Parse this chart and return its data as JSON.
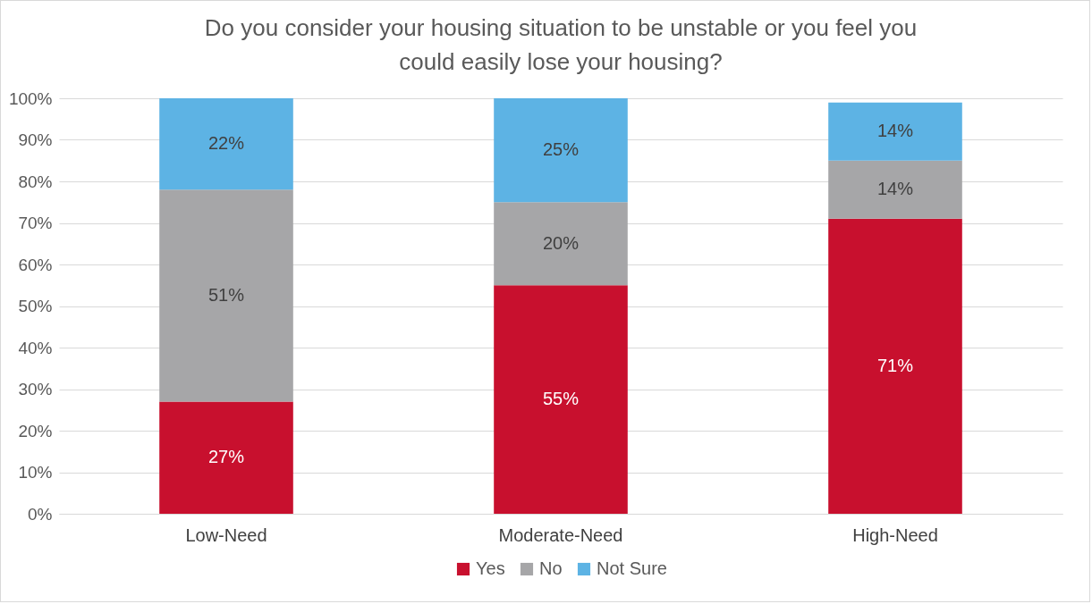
{
  "chart_data": {
    "type": "bar",
    "title": "Do you consider your housing situation to be unstable or you feel you could easily lose your housing?",
    "categories": [
      "Low-Need",
      "Moderate-Need",
      "High-Need"
    ],
    "stacked": true,
    "series": [
      {
        "name": "Yes",
        "color": "#c8102e",
        "values": [
          27,
          55,
          71
        ]
      },
      {
        "name": "No",
        "color": "#a6a6a8",
        "values": [
          51,
          20,
          14
        ]
      },
      {
        "name": "Not Sure",
        "color": "#5db3e4",
        "values": [
          22,
          25,
          14
        ]
      }
    ],
    "ylim": [
      0,
      100
    ],
    "yticks": [
      {
        "value": 0,
        "label": "0%"
      },
      {
        "value": 10,
        "label": "10%"
      },
      {
        "value": 20,
        "label": "20%"
      },
      {
        "value": 30,
        "label": "30%"
      },
      {
        "value": 40,
        "label": "40%"
      },
      {
        "value": 50,
        "label": "50%"
      },
      {
        "value": 60,
        "label": "60%"
      },
      {
        "value": 70,
        "label": "70%"
      },
      {
        "value": 80,
        "label": "80%"
      },
      {
        "value": 90,
        "label": "90%"
      },
      {
        "value": 100,
        "label": "100%"
      }
    ],
    "value_labels": [
      [
        "27%",
        "55%",
        "71%"
      ],
      [
        "51%",
        "20%",
        "14%"
      ],
      [
        "22%",
        "25%",
        "14%"
      ]
    ],
    "grid": "y",
    "legend": "bottom"
  }
}
